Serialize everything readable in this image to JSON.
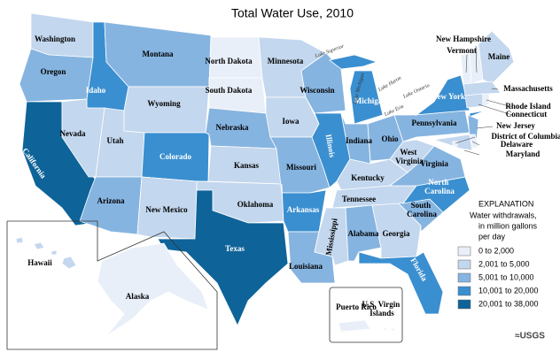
{
  "title": "Total Water Use, 2010",
  "states": [
    {
      "label": "Washington",
      "color": "#c3d7ee"
    },
    {
      "label": "Oregon",
      "color": "#86b4e0"
    },
    {
      "label": "California",
      "color": "#0e6399"
    },
    {
      "label": "Idaho",
      "color": "#3a8fd0"
    },
    {
      "label": "Nevada",
      "color": "#c3d7ee"
    },
    {
      "label": "Utah",
      "color": "#c3d7ee"
    },
    {
      "label": "Arizona",
      "color": "#86b4e0"
    },
    {
      "label": "Montana",
      "color": "#86b4e0"
    },
    {
      "label": "Wyoming",
      "color": "#c3d7ee"
    },
    {
      "label": "Colorado",
      "color": "#3a8fd0"
    },
    {
      "label": "New Mexico",
      "color": "#c3d7ee"
    },
    {
      "label": "North Dakota",
      "color": "#e8eff8"
    },
    {
      "label": "South Dakota",
      "color": "#e8eff8"
    },
    {
      "label": "Nebraska",
      "color": "#86b4e0"
    },
    {
      "label": "Kansas",
      "color": "#c3d7ee"
    },
    {
      "label": "Oklahoma",
      "color": "#c3d7ee"
    },
    {
      "label": "Texas",
      "color": "#0e6399"
    },
    {
      "label": "Minnesota",
      "color": "#c3d7ee"
    },
    {
      "label": "Iowa",
      "color": "#c3d7ee"
    },
    {
      "label": "Missouri",
      "color": "#86b4e0"
    },
    {
      "label": "Arkansas",
      "color": "#3a8fd0"
    },
    {
      "label": "Louisiana",
      "color": "#86b4e0"
    },
    {
      "label": "Wisconsin",
      "color": "#86b4e0"
    },
    {
      "label": "Illinois",
      "color": "#3a8fd0"
    },
    {
      "label": "Michigan",
      "color": "#3a8fd0"
    },
    {
      "label": "Indiana",
      "color": "#86b4e0"
    },
    {
      "label": "Ohio",
      "color": "#86b4e0"
    },
    {
      "label": "Kentucky",
      "color": "#c3d7ee"
    },
    {
      "label": "Tennessee",
      "color": "#c3d7ee"
    },
    {
      "label": "Mississippi",
      "color": "#c3d7ee"
    },
    {
      "label": "Alabama",
      "color": "#86b4e0"
    },
    {
      "label": "Georgia",
      "color": "#c3d7ee"
    },
    {
      "label": "Florida",
      "color": "#3a8fd0"
    },
    {
      "label": "South Carolina",
      "color": "#86b4e0"
    },
    {
      "label": "North Carolina",
      "color": "#3a8fd0"
    },
    {
      "label": "Virginia",
      "color": "#86b4e0"
    },
    {
      "label": "West Virginia",
      "color": "#c3d7ee"
    },
    {
      "label": "Pennsylvania",
      "color": "#86b4e0"
    },
    {
      "label": "New York",
      "color": "#3a8fd0"
    },
    {
      "label": "Vermont",
      "color": "#e8eff8"
    },
    {
      "label": "New Hampshire",
      "color": "#e8eff8"
    },
    {
      "label": "Maine",
      "color": "#c3d7ee"
    },
    {
      "label": "Massachusetts",
      "color": "#c3d7ee"
    },
    {
      "label": "Connecticut",
      "color": "#c3d7ee"
    },
    {
      "label": "Rhode Island",
      "color": "#e8eff8"
    },
    {
      "label": "New Jersey",
      "color": "#86b4e0"
    },
    {
      "label": "Maryland",
      "color": "#c3d7ee"
    },
    {
      "label": "Delaware",
      "color": "#e8eff8"
    },
    {
      "label": "District of Columbia",
      "color": "#e8eff8"
    },
    {
      "label": "Hawaii",
      "color": "#c3d7ee"
    },
    {
      "label": "Alaska",
      "color": "#e8eff8"
    },
    {
      "label": "Puerto Rico",
      "color": "#e8eff8"
    },
    {
      "label": "U.S. Virgin Islands",
      "color": "#e8eff8"
    }
  ],
  "lakes": [
    "Lake Superior",
    "Lake Michigan",
    "Lake Huron",
    "Lake Ontario",
    "Lake Erie"
  ],
  "legend": {
    "heading": "EXPLANATION",
    "description": [
      "Water withdrawals,",
      "in million gallons",
      "per day"
    ],
    "items": [
      {
        "label": "0 to 2,000",
        "color": "#e8eff8"
      },
      {
        "label": "2,001 to 5,000",
        "color": "#c3d7ee"
      },
      {
        "label": "5,001 to 10,000",
        "color": "#86b4e0"
      },
      {
        "label": "10,001 to 20,000",
        "color": "#3a8fd0"
      },
      {
        "label": "20,001 to 38,000",
        "color": "#0e6399"
      }
    ]
  },
  "logo": "≈USGS"
}
